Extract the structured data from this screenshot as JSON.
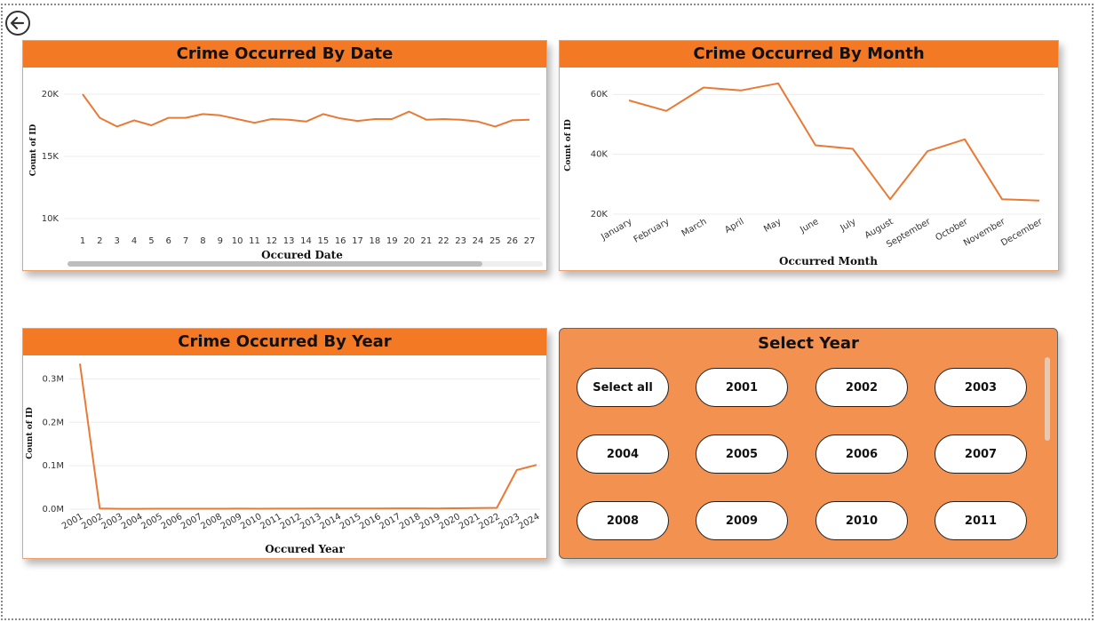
{
  "page": {
    "back_icon": "back-arrow-icon",
    "accent_color": "#f37925"
  },
  "date_chart": {
    "title": "Crime Occurred By Date",
    "xlabel": "Occured Date",
    "ylabel": "Count of ID"
  },
  "month_chart": {
    "title": "Crime Occurred By Month",
    "xlabel": "Occurred Month",
    "ylabel": "Count of ID"
  },
  "year_chart": {
    "title": "Crime Occurred By Year",
    "xlabel": "Occured Year",
    "ylabel": "Count of ID"
  },
  "slicer": {
    "title": "Select Year",
    "options": [
      "Select all",
      "2001",
      "2002",
      "2003",
      "2004",
      "2005",
      "2006",
      "2007",
      "2008",
      "2009",
      "2010",
      "2011"
    ]
  },
  "chart_data": [
    {
      "type": "line",
      "title": "Crime Occurred By Date",
      "xlabel": "Occured Date",
      "ylabel": "Count of ID",
      "x": [
        "1",
        "2",
        "3",
        "4",
        "5",
        "6",
        "7",
        "8",
        "9",
        "10",
        "11",
        "12",
        "13",
        "14",
        "15",
        "16",
        "17",
        "18",
        "19",
        "20",
        "21",
        "22",
        "23",
        "24",
        "25",
        "26",
        "27"
      ],
      "values": [
        20000,
        18100,
        17400,
        17900,
        17500,
        18100,
        18100,
        18400,
        18300,
        18000,
        17700,
        18000,
        17950,
        17800,
        18400,
        18050,
        17850,
        18000,
        18000,
        18600,
        17950,
        18000,
        17950,
        17800,
        17400,
        17900,
        17950
      ],
      "yticks": [
        "10K",
        "15K",
        "20K"
      ],
      "ylim": [
        10000,
        21000
      ],
      "color": "#e87a35",
      "grid": true
    },
    {
      "type": "line",
      "title": "Crime Occurred By Month",
      "xlabel": "Occurred Month",
      "ylabel": "Count of ID",
      "x": [
        "January",
        "February",
        "March",
        "April",
        "May",
        "June",
        "July",
        "August",
        "September",
        "October",
        "November",
        "December"
      ],
      "values": [
        58000,
        54500,
        62300,
        61300,
        63700,
        43000,
        41800,
        25000,
        41000,
        45000,
        25000,
        24500
      ],
      "yticks": [
        "20K",
        "40K",
        "60K"
      ],
      "ylim": [
        20000,
        66000
      ],
      "color": "#e87a35",
      "grid": true
    },
    {
      "type": "line",
      "title": "Crime Occurred By Year",
      "xlabel": "Occured Year",
      "ylabel": "Count of ID",
      "x": [
        "2001",
        "2002",
        "2003",
        "2004",
        "2005",
        "2006",
        "2007",
        "2008",
        "2009",
        "2010",
        "2011",
        "2012",
        "2013",
        "2014",
        "2015",
        "2016",
        "2017",
        "2018",
        "2019",
        "2020",
        "2021",
        "2022",
        "2023",
        "2024"
      ],
      "values": [
        335000,
        1500,
        800,
        900,
        1000,
        1000,
        1000,
        1100,
        1200,
        1100,
        1300,
        1200,
        1400,
        1500,
        1600,
        1700,
        1800,
        1900,
        1700,
        2000,
        2500,
        3000,
        90000,
        102000
      ],
      "yticks": [
        "0.0M",
        "0.1M",
        "0.2M",
        "0.3M"
      ],
      "ylim": [
        0,
        350000
      ],
      "color": "#e87a35",
      "grid": true
    }
  ]
}
